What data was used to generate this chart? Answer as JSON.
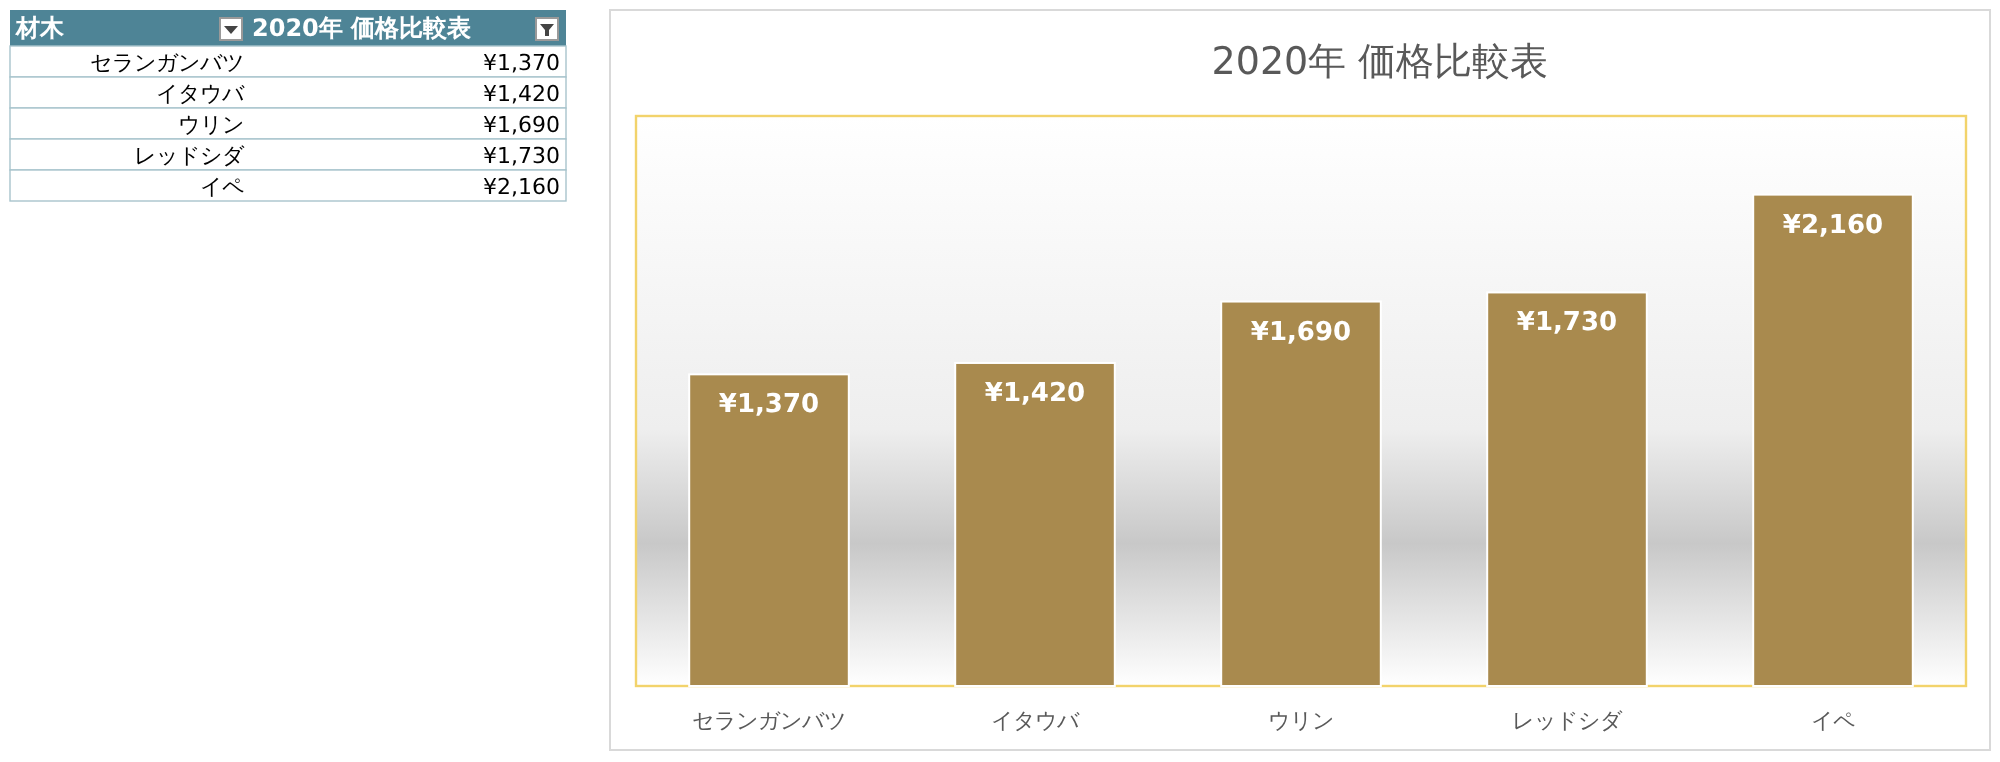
{
  "chart_data": {
    "type": "bar",
    "title": "2020年  価格比較表",
    "categories": [
      "セランガンバツ",
      "イタウバ",
      "ウリン",
      "レッドシダ",
      "イペ"
    ],
    "values": [
      1370,
      1420,
      1690,
      1730,
      2160
    ],
    "color": "#a98a4e",
    "value_labels": [
      "¥1,370",
      "¥1,420",
      "¥1,690",
      "¥1,730",
      "¥2,160"
    ],
    "annotations": [
      "材木"
    ]
  }
}
